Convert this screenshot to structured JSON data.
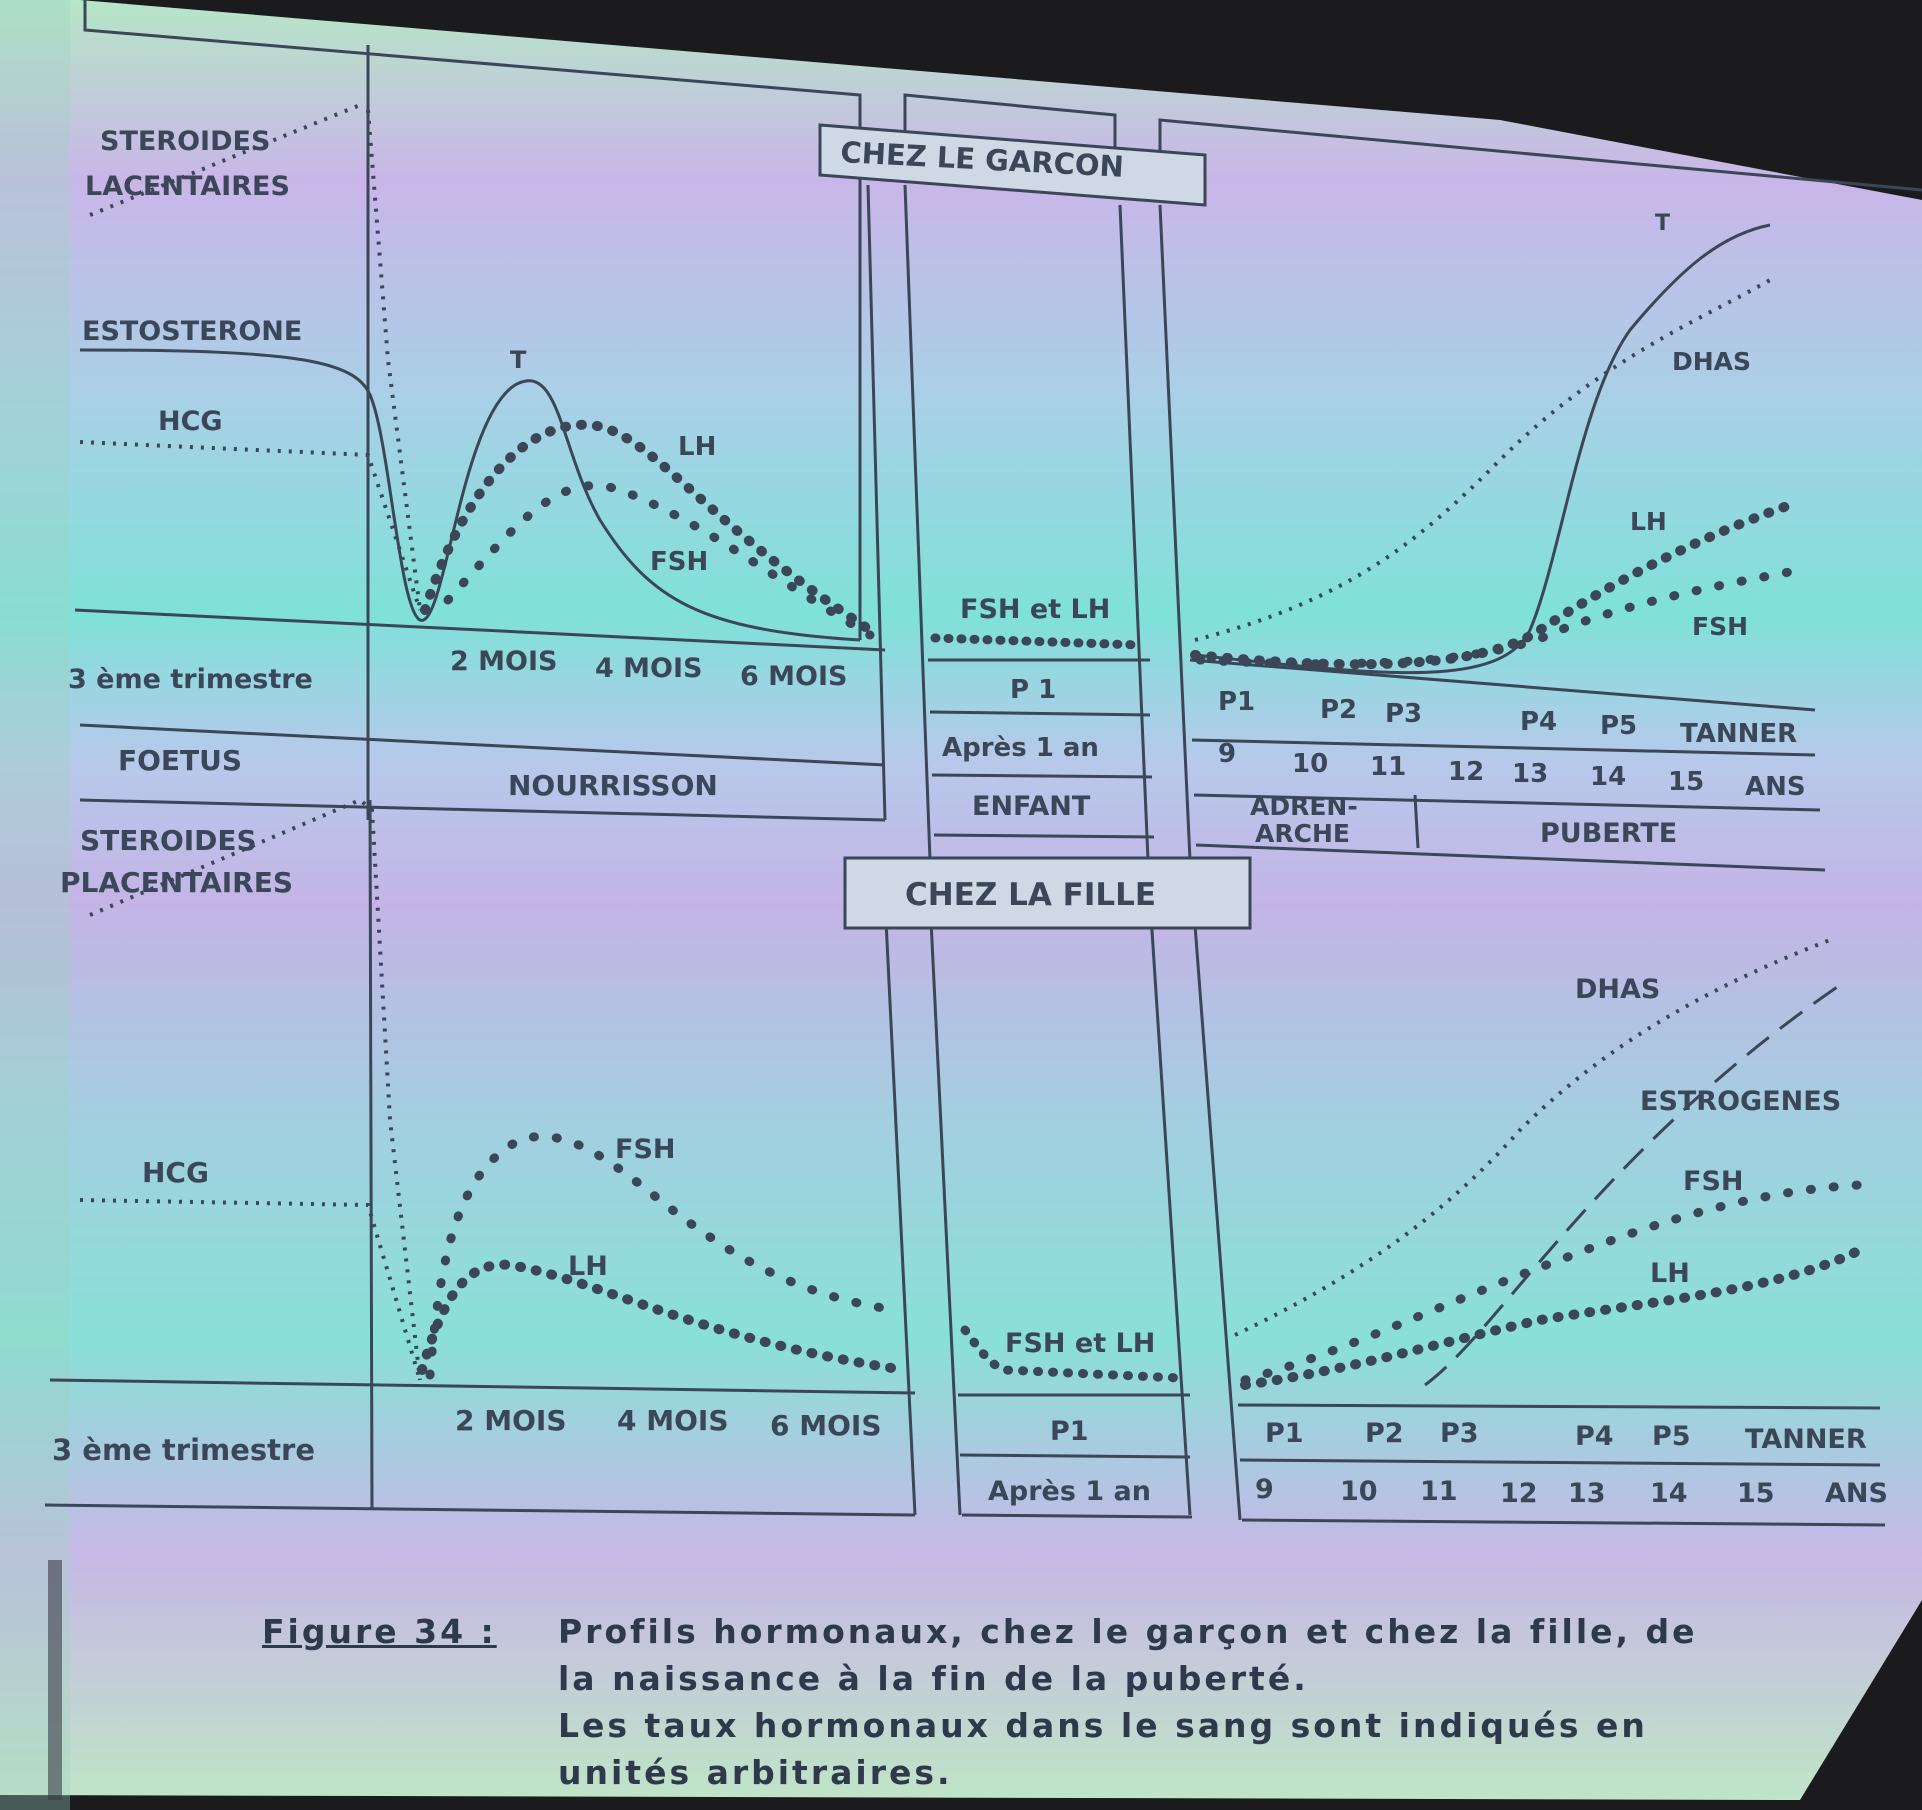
{
  "boy": {
    "title": "CHEZ LE GARCON",
    "steroides_1": "STEROIDES",
    "steroides_2": "LACENTAIRES",
    "testosterone": "ESTOSTERONE",
    "hcg": "HCG",
    "t_infant": "T",
    "lh_infant": "LH",
    "fsh_infant": "FSH",
    "fsh_lh_child": "FSH et LH",
    "t_puberty": "T",
    "dhas": "DHAS",
    "lh_puberty": "LH",
    "fsh_puberty": "FSH",
    "trimestre": "3 ème trimestre",
    "mois2": "2 MOIS",
    "mois4": "4 MOIS",
    "mois6": "6 MOIS",
    "p1_child": "P 1",
    "apres": "Après   1   an",
    "tanner": [
      "P1",
      "P2",
      "P3",
      "P4",
      "P5",
      "TANNER"
    ],
    "ages": [
      "9",
      "10",
      "11",
      "12",
      "13",
      "14",
      "15",
      "ANS"
    ],
    "foetus": "FOETUS",
    "nourrisson": "NOURRISSON",
    "enfant": "ENFANT",
    "adren_1": "ADREN-",
    "adren_2": "ARCHE",
    "puberte": "PUBERTE"
  },
  "girl": {
    "title": "CHEZ LA FILLE",
    "steroides_1": "STEROIDES",
    "steroides_2": "PLACENTAIRES",
    "hcg": "HCG",
    "fsh_infant": "FSH",
    "lh_infant": "LH",
    "fsh_lh_child": "FSH et LH",
    "dhas": "DHAS",
    "estrogenes": "ESTROGENES",
    "fsh_puberty": "FSH",
    "lh_puberty": "LH",
    "trimestre": "3 ème trimestre",
    "mois2": "2 MOIS",
    "mois4": "4 MOIS",
    "mois6": "6 MOIS",
    "p1_child": "P1",
    "apres": "Après  1 an",
    "tanner": [
      "P1",
      "P2",
      "P3",
      "P4",
      "P5",
      "TANNER"
    ],
    "ages": [
      "9",
      "10",
      "11",
      "12",
      "13",
      "14",
      "15",
      "ANS"
    ]
  },
  "caption": {
    "label": "Figure  34  :",
    "line1": "Profils  hormonaux,  chez  le  garçon  et  chez  la  fille,  de",
    "line2": "la  naissance  à  la  fin  de  la  puberté.",
    "line3": "Les  taux  hormonaux  dans  le  sang  sont  indiqués  en",
    "line4": "unités    arbitraires."
  },
  "colors": {
    "ink": "#3b4658",
    "background_top": "#c9b6e8",
    "background_mid": "#7fe1d9"
  }
}
